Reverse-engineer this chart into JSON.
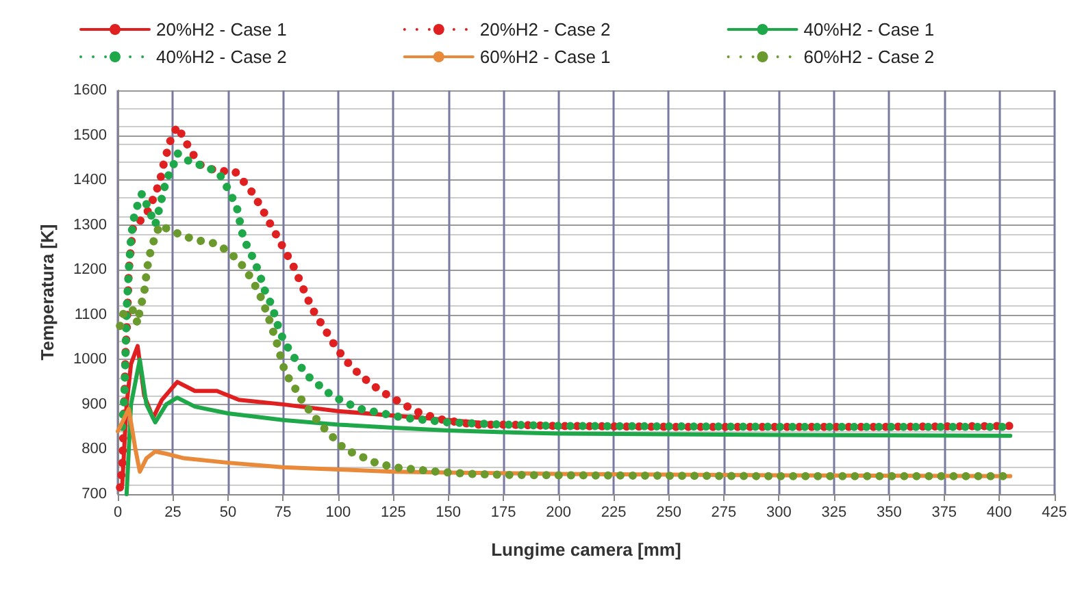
{
  "chart_data": {
    "type": "line",
    "xlabel": "Lungime camera [mm]",
    "ylabel": "Temperatura [K]",
    "xlim": [
      0,
      425
    ],
    "xticks": [
      0,
      25,
      50,
      75,
      100,
      125,
      150,
      175,
      200,
      225,
      250,
      275,
      300,
      325,
      350,
      375,
      400,
      425
    ],
    "ylim": [
      700,
      1600
    ],
    "yticks": [
      700,
      800,
      900,
      1000,
      1100,
      1200,
      1300,
      1400,
      1500,
      1600
    ],
    "grid": true,
    "legend": "top",
    "marker": "none",
    "series": [
      {
        "name": "20%H2 - Case 1",
        "color": "#e02020",
        "line_style": "solid",
        "x": [
          2,
          4,
          6,
          9,
          12,
          16,
          20,
          27,
          35,
          45,
          55,
          75,
          100,
          125,
          150,
          175,
          200,
          250,
          300,
          350,
          405
        ],
        "values": [
          720,
          900,
          990,
          1030,
          920,
          870,
          910,
          950,
          930,
          930,
          910,
          900,
          885,
          875,
          865,
          855,
          850,
          850,
          850,
          850,
          850
        ]
      },
      {
        "name": "20%H2 - Case 2",
        "color": "#e02020",
        "line_style": "dotted",
        "x": [
          1,
          2,
          3,
          3.5,
          4,
          5,
          6,
          7,
          12,
          15,
          19,
          21,
          24,
          27,
          32,
          37,
          45,
          53,
          60,
          65,
          70,
          75,
          80,
          84,
          88,
          93,
          98,
          103,
          109,
          115,
          121,
          128,
          135,
          141,
          148,
          155,
          162,
          175,
          200,
          250,
          300,
          350,
          405
        ],
        "values": [
          715,
          760,
          910,
          1010,
          1060,
          1200,
          1250,
          1300,
          1315,
          1345,
          1395,
          1440,
          1490,
          1520,
          1475,
          1435,
          1420,
          1420,
          1380,
          1340,
          1295,
          1250,
          1205,
          1160,
          1115,
          1075,
          1035,
          1000,
          970,
          945,
          925,
          905,
          885,
          875,
          865,
          860,
          855,
          855,
          852,
          850,
          850,
          850,
          852
        ]
      },
      {
        "name": "40%H2 - Case 1",
        "color": "#1fa84a",
        "line_style": "solid",
        "x": [
          4,
          6,
          10,
          13,
          17,
          22,
          27,
          35,
          50,
          75,
          100,
          125,
          150,
          175,
          200,
          300,
          405
        ],
        "values": [
          700,
          900,
          1000,
          900,
          860,
          900,
          915,
          895,
          880,
          865,
          855,
          848,
          842,
          838,
          835,
          832,
          830
        ]
      },
      {
        "name": "40%H2 - Case 2",
        "color": "#1fa84a",
        "line_style": "dotted",
        "x": [
          2,
          3,
          3.5,
          4,
          5,
          6,
          7,
          9,
          11,
          14,
          17,
          20,
          22,
          25,
          27,
          33,
          40,
          46,
          50,
          54,
          57,
          61,
          64,
          67,
          70,
          72,
          75,
          78,
          82,
          87,
          92,
          97,
          103,
          110,
          120,
          130,
          140,
          150,
          175,
          200,
          300,
          405
        ],
        "values": [
          850,
          920,
          1010,
          1110,
          1200,
          1270,
          1310,
          1345,
          1370,
          1335,
          1300,
          1360,
          1400,
          1430,
          1460,
          1440,
          1430,
          1415,
          1380,
          1340,
          1270,
          1230,
          1195,
          1150,
          1120,
          1085,
          1045,
          1020,
          990,
          960,
          940,
          920,
          905,
          890,
          880,
          870,
          865,
          860,
          855,
          852,
          850,
          850
        ]
      },
      {
        "name": "60%H2 - Case 1",
        "color": "#e88a3a",
        "line_style": "solid",
        "x": [
          0,
          3,
          5,
          8,
          10,
          13,
          17,
          22,
          30,
          50,
          75,
          100,
          125,
          150,
          200,
          300,
          405
        ],
        "values": [
          840,
          870,
          890,
          800,
          750,
          780,
          795,
          790,
          780,
          770,
          760,
          755,
          750,
          748,
          745,
          742,
          740
        ]
      },
      {
        "name": "60%H2 - Case 2",
        "color": "#6a9a2e",
        "line_style": "dotted",
        "x": [
          1,
          3,
          5,
          7,
          9,
          10,
          12,
          13,
          14,
          16,
          19,
          23,
          30,
          37,
          43,
          49,
          55,
          60,
          64,
          68,
          72,
          76,
          80,
          84,
          88,
          93,
          98,
          103,
          110,
          117,
          125,
          135,
          145,
          160,
          175,
          200,
          300,
          405
        ],
        "values": [
          1075,
          1110,
          1110,
          1110,
          1080,
          1110,
          1150,
          1190,
          1225,
          1260,
          1300,
          1290,
          1275,
          1265,
          1260,
          1245,
          1220,
          1185,
          1150,
          1100,
          1040,
          970,
          940,
          905,
          880,
          850,
          825,
          800,
          785,
          770,
          760,
          755,
          750,
          745,
          743,
          742,
          740,
          740
        ]
      }
    ]
  }
}
